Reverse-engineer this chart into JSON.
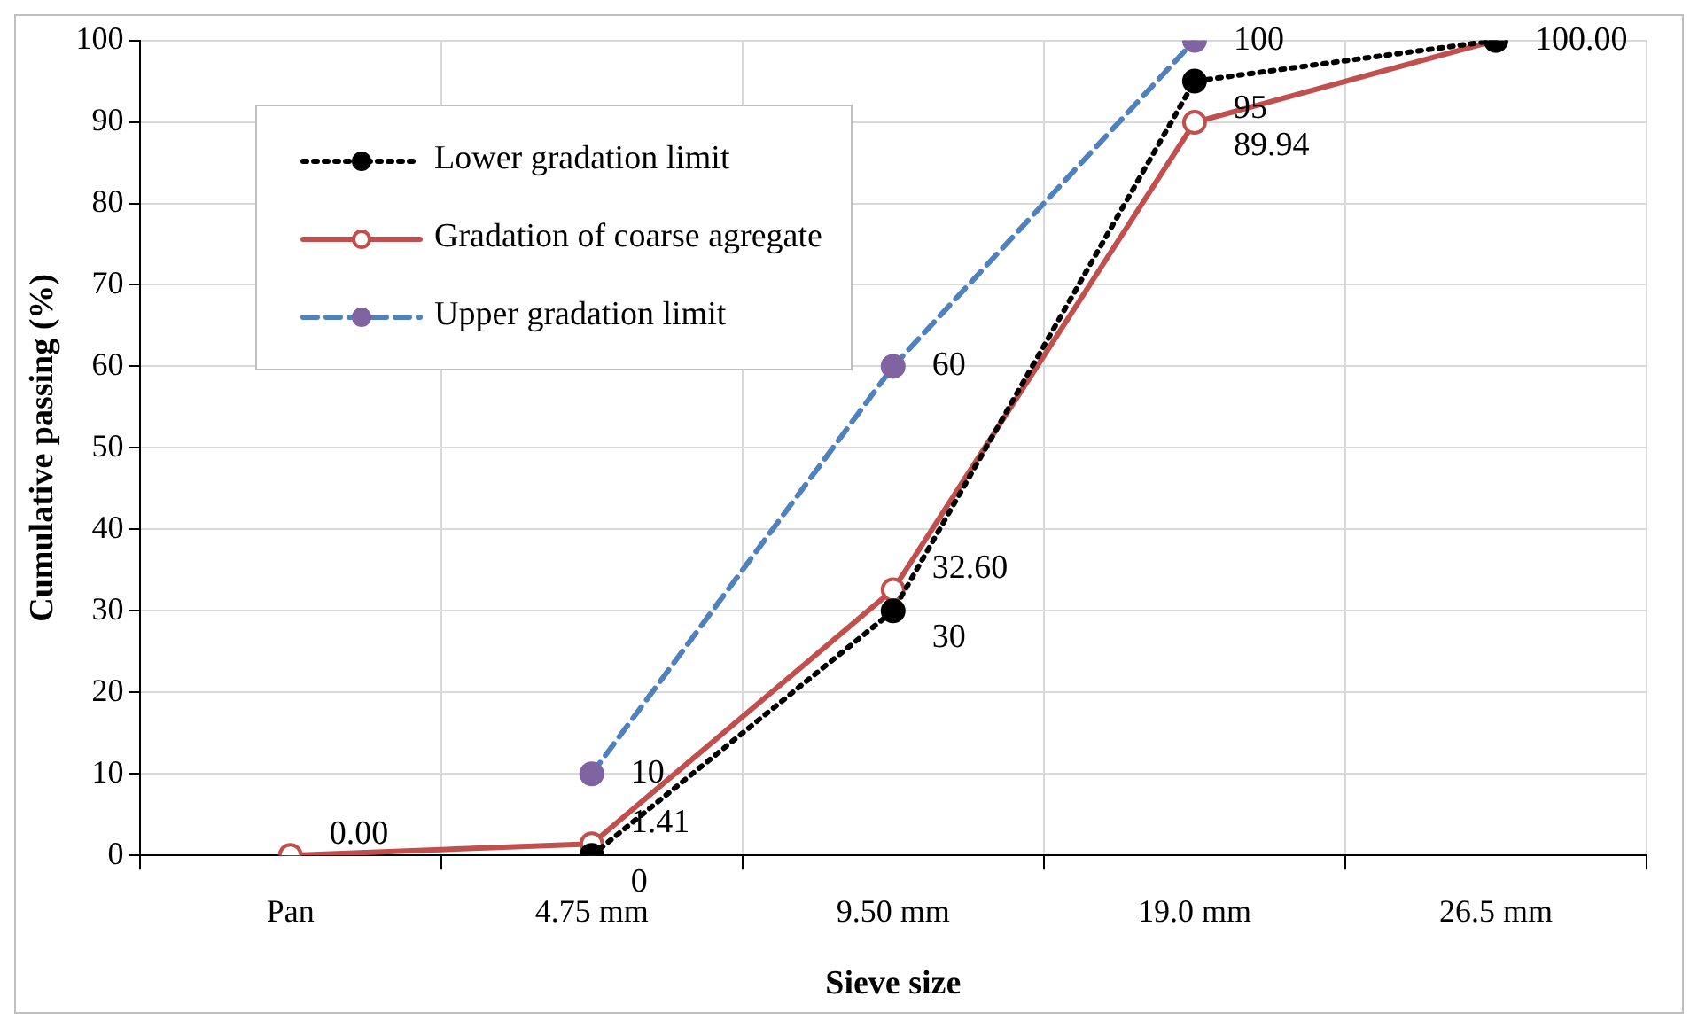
{
  "chart_data": {
    "type": "line",
    "xlabel": "Sieve size",
    "ylabel": "Cumulative passing (%)",
    "categories": [
      "Pan",
      "4.75 mm",
      "9.50 mm",
      "19.0 mm",
      "26.5 mm"
    ],
    "series": [
      {
        "name": "Lower gradation limit",
        "color": "#000000",
        "values": [
          null,
          0,
          30,
          95,
          100
        ],
        "value_labels": [
          null,
          "0",
          "30",
          "95",
          null
        ],
        "line_style": "dotted",
        "marker": "circle"
      },
      {
        "name": "Gradation of coarse agregate",
        "color": "#c0504d",
        "values": [
          0,
          1.41,
          32.6,
          89.94,
          100
        ],
        "value_labels": [
          "0.00",
          "1.41",
          "32.60",
          "89.94",
          "100.00"
        ],
        "line_style": "solid",
        "marker": "circle"
      },
      {
        "name": "Upper gradation limit",
        "color": "#4f81bd",
        "colors": [
          null,
          "#8064a2",
          "#8064a2",
          "#8064a2",
          null
        ],
        "values": [
          null,
          10,
          60,
          100,
          null
        ],
        "value_labels": [
          null,
          "10",
          "60",
          "100",
          null
        ],
        "line_style": "dashed",
        "marker": "circle"
      }
    ],
    "ylim": [
      0,
      100
    ],
    "yticks": [
      0,
      10,
      20,
      30,
      40,
      50,
      60,
      70,
      80,
      90,
      100
    ],
    "grid": true,
    "legend": "top left"
  }
}
